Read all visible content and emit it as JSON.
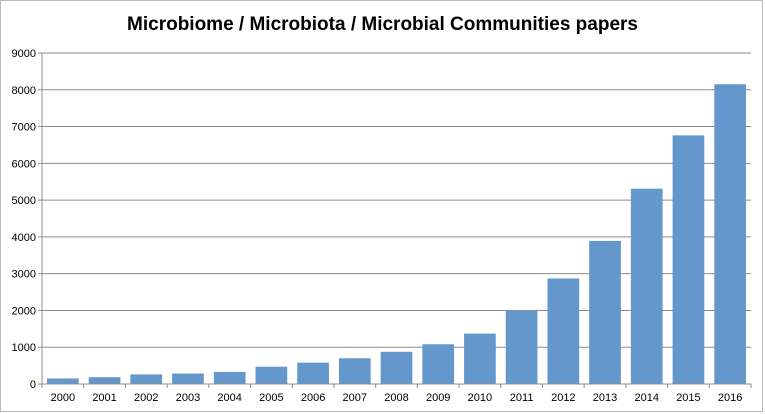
{
  "chart_data": {
    "type": "bar",
    "title": "Microbiome / Microbiota /  Microbial Communities papers",
    "xlabel": "",
    "ylabel": "",
    "categories": [
      "2000",
      "2001",
      "2002",
      "2003",
      "2004",
      "2005",
      "2006",
      "2007",
      "2008",
      "2009",
      "2010",
      "2011",
      "2012",
      "2013",
      "2014",
      "2015",
      "2016"
    ],
    "values": [
      150,
      185,
      260,
      285,
      330,
      470,
      580,
      700,
      875,
      1080,
      1370,
      1990,
      2870,
      3890,
      5310,
      6760,
      8150
    ],
    "ylim": [
      0,
      9000
    ],
    "yticks": [
      0,
      1000,
      2000,
      3000,
      4000,
      5000,
      6000,
      7000,
      8000,
      9000
    ],
    "grid": true,
    "legend": "none",
    "bar_color": "#6497cc"
  }
}
